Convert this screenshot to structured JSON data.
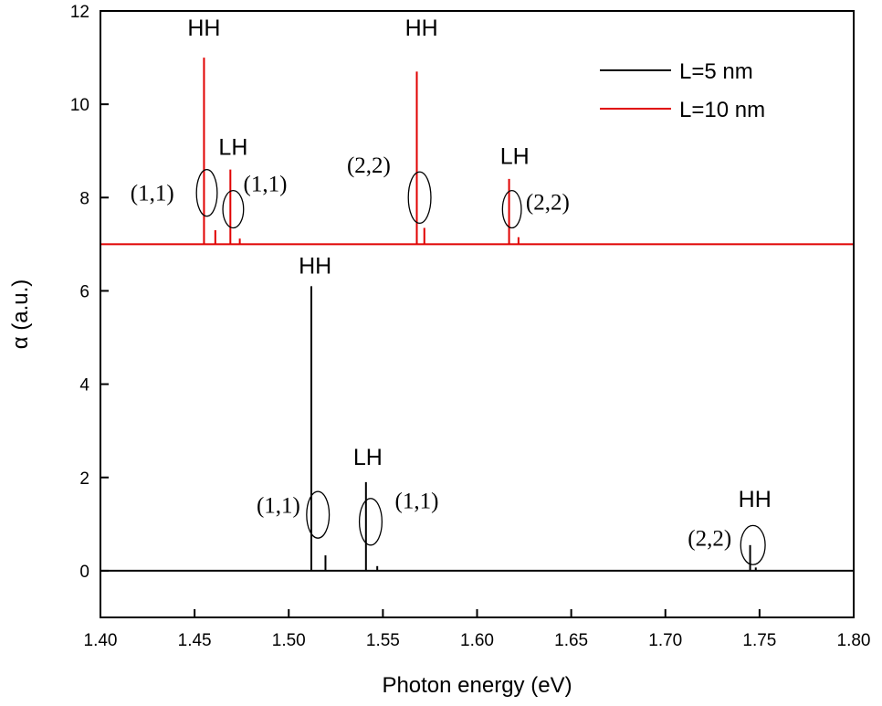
{
  "chart_data": {
    "type": "line",
    "xlabel": "Photon energy (eV)",
    "ylabel": "α (a.u.)",
    "xlim": [
      1.4,
      1.8
    ],
    "ylim": [
      -1,
      12
    ],
    "xticks": [
      "1.40",
      "1.45",
      "1.50",
      "1.55",
      "1.60",
      "1.65",
      "1.70",
      "1.75",
      "1.80"
    ],
    "yticks": [
      "0",
      "2",
      "4",
      "6",
      "8",
      "10",
      "12"
    ],
    "grid": false,
    "legend_position": "top-right",
    "colors": {
      "L5": "#000000",
      "L10": "#e00000"
    },
    "series": [
      {
        "name": "L=5 nm",
        "baseline": 0,
        "peaks": [
          {
            "x": 1.512,
            "y": 6.1
          },
          {
            "x": 1.5195,
            "y": 0.33
          },
          {
            "x": 1.541,
            "y": 1.9
          },
          {
            "x": 1.547,
            "y": 0.1
          },
          {
            "x": 1.745,
            "y": 0.55
          },
          {
            "x": 1.748,
            "y": 0.07
          }
        ]
      },
      {
        "name": "L=10 nm",
        "baseline": 7,
        "peaks": [
          {
            "x": 1.455,
            "y": 11.0
          },
          {
            "x": 1.461,
            "y": 7.3
          },
          {
            "x": 1.469,
            "y": 8.6
          },
          {
            "x": 1.474,
            "y": 7.12
          },
          {
            "x": 1.568,
            "y": 10.7
          },
          {
            "x": 1.572,
            "y": 7.35
          },
          {
            "x": 1.617,
            "y": 8.4
          },
          {
            "x": 1.622,
            "y": 7.15
          }
        ]
      }
    ],
    "annotations": [
      {
        "text": "HH",
        "kind": "band",
        "x": 1.455,
        "y": 11.6
      },
      {
        "text": "LH",
        "kind": "band",
        "x": 1.4705,
        "y": 9.05
      },
      {
        "text": "HH",
        "kind": "band",
        "x": 1.5705,
        "y": 11.6
      },
      {
        "text": "LH",
        "kind": "band",
        "x": 1.62,
        "y": 8.85
      },
      {
        "text": "HH",
        "kind": "band",
        "x": 1.514,
        "y": 6.5
      },
      {
        "text": "LH",
        "kind": "band",
        "x": 1.542,
        "y": 2.4
      },
      {
        "text": "HH",
        "kind": "band",
        "x": 1.7475,
        "y": 1.5
      },
      {
        "text": "(1,1)",
        "kind": "transition",
        "x": 1.4275,
        "y": 8.05
      },
      {
        "text": "(1,1)",
        "kind": "transition",
        "x": 1.4875,
        "y": 8.25
      },
      {
        "text": "(2,2)",
        "kind": "transition",
        "x": 1.5425,
        "y": 8.65
      },
      {
        "text": "(2,2)",
        "kind": "transition",
        "x": 1.6375,
        "y": 7.85
      },
      {
        "text": "(1,1)",
        "kind": "transition",
        "x": 1.4945,
        "y": 1.35
      },
      {
        "text": "(1,1)",
        "kind": "transition",
        "x": 1.568,
        "y": 1.45
      },
      {
        "text": "(2,2)",
        "kind": "transition",
        "x": 1.7235,
        "y": 0.65
      }
    ],
    "ellipses": [
      {
        "x": 1.4565,
        "y": 8.1,
        "rx": 0.0055,
        "ry": 0.5
      },
      {
        "x": 1.4705,
        "y": 7.75,
        "rx": 0.0055,
        "ry": 0.4
      },
      {
        "x": 1.5695,
        "y": 8.0,
        "rx": 0.006,
        "ry": 0.55
      },
      {
        "x": 1.6185,
        "y": 7.75,
        "rx": 0.005,
        "ry": 0.4
      },
      {
        "x": 1.5155,
        "y": 1.2,
        "rx": 0.006,
        "ry": 0.5
      },
      {
        "x": 1.5435,
        "y": 1.05,
        "rx": 0.006,
        "ry": 0.5
      },
      {
        "x": 1.7465,
        "y": 0.55,
        "rx": 0.0065,
        "ry": 0.42
      }
    ]
  }
}
